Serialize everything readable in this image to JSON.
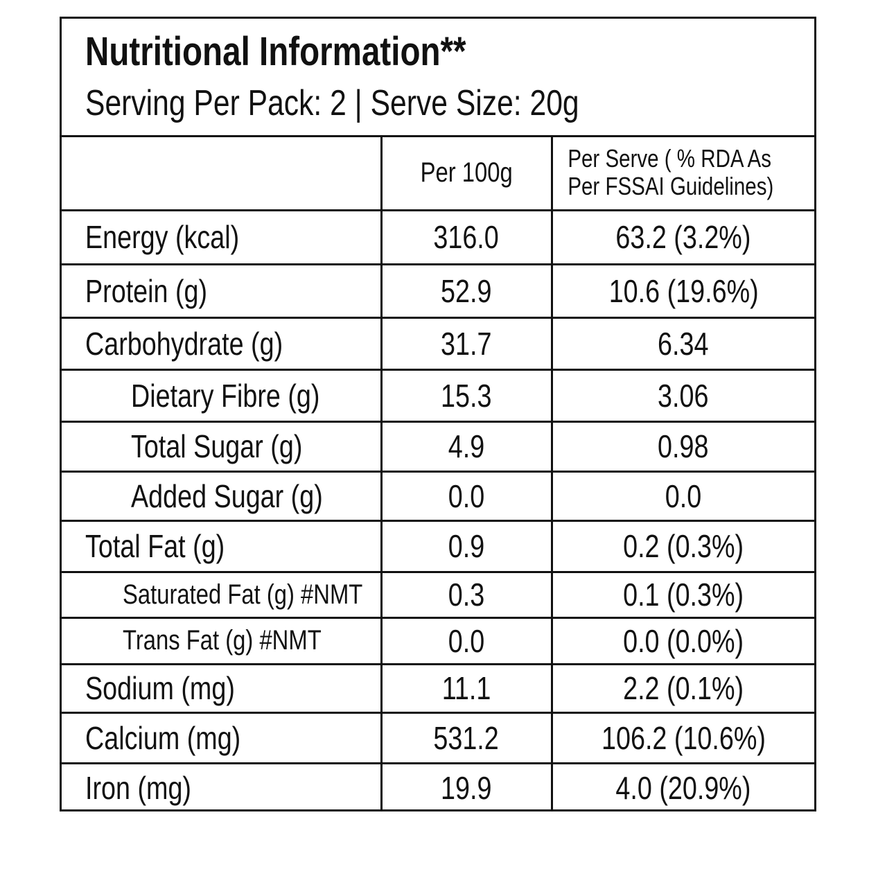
{
  "header": {
    "title": "Nutritional Information**",
    "subtitle": "Serving Per Pack: 2 | Serve Size: 20g"
  },
  "table": {
    "columns": [
      "",
      "Per 100g",
      "Per Serve ( % RDA As Per FSSAI Guidelines)"
    ],
    "rows": [
      [
        "Energy (kcal)",
        "316.0",
        "63.2 (3.2%)"
      ],
      [
        "Protein (g)",
        "52.9",
        "10.6 (19.6%)"
      ],
      [
        "Carbohydrate (g)",
        "31.7",
        "6.34"
      ],
      [
        "Dietary Fibre (g)",
        "15.3",
        "3.06"
      ],
      [
        "Total Sugar (g)",
        "4.9",
        "0.98"
      ],
      [
        "Added Sugar (g)",
        "0.0",
        "0.0"
      ],
      [
        "Total Fat (g)",
        "0.9",
        "0.2 (0.3%)"
      ],
      [
        "Saturated Fat (g) #NMT",
        "0.3",
        "0.1 (0.3%)"
      ],
      [
        "Trans Fat (g) #NMT",
        "0.0",
        "0.0 (0.0%)"
      ],
      [
        "Sodium (mg)",
        "11.1",
        "2.2 (0.1%)"
      ],
      [
        "Calcium (mg)",
        "531.2",
        "106.2 (10.6%)"
      ],
      [
        "Iron (mg)",
        "19.9",
        "4.0 (20.9%)"
      ]
    ]
  }
}
